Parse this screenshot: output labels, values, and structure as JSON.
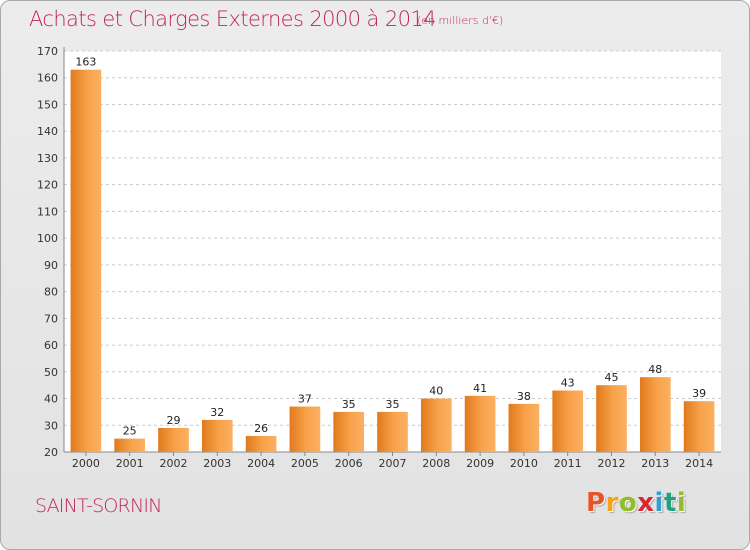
{
  "header": {
    "title": "Achats et Charges Externes 2000 à 2014",
    "unit": "(en milliers d'€)"
  },
  "footer": {
    "location": "SAINT-SORNIN",
    "logo_letters": [
      {
        "char": "P",
        "color": "#e8542a"
      },
      {
        "char": "r",
        "color": "#f5a31a"
      },
      {
        "char": "o",
        "color": "#8fbe2a"
      },
      {
        "char": "x",
        "color": "#d9282f"
      },
      {
        "char": "i",
        "color": "#2f9fd8"
      },
      {
        "char": "t",
        "color": "#1fa37e"
      },
      {
        "char": "i",
        "color": "#8fbe2a"
      }
    ]
  },
  "colors": {
    "accent": "#c2245f",
    "bar_light": "#fbb062",
    "bar_dark": "#e07a1c",
    "grid": "#cccccc"
  },
  "chart_data": {
    "type": "bar",
    "title": "Achats et Charges Externes 2000 à 2014",
    "subtitle": "(en milliers d'€)",
    "categories": [
      "2000",
      "2001",
      "2002",
      "2003",
      "2004",
      "2005",
      "2006",
      "2007",
      "2008",
      "2009",
      "2010",
      "2011",
      "2012",
      "2013",
      "2014"
    ],
    "values": [
      163,
      25,
      29,
      32,
      26,
      37,
      35,
      35,
      40,
      41,
      38,
      43,
      45,
      48,
      39
    ],
    "ylim": [
      20,
      170
    ],
    "yticks": [
      20,
      30,
      40,
      50,
      60,
      70,
      80,
      90,
      100,
      110,
      120,
      130,
      140,
      150,
      160,
      170
    ],
    "grid": true,
    "data_labels": true
  }
}
